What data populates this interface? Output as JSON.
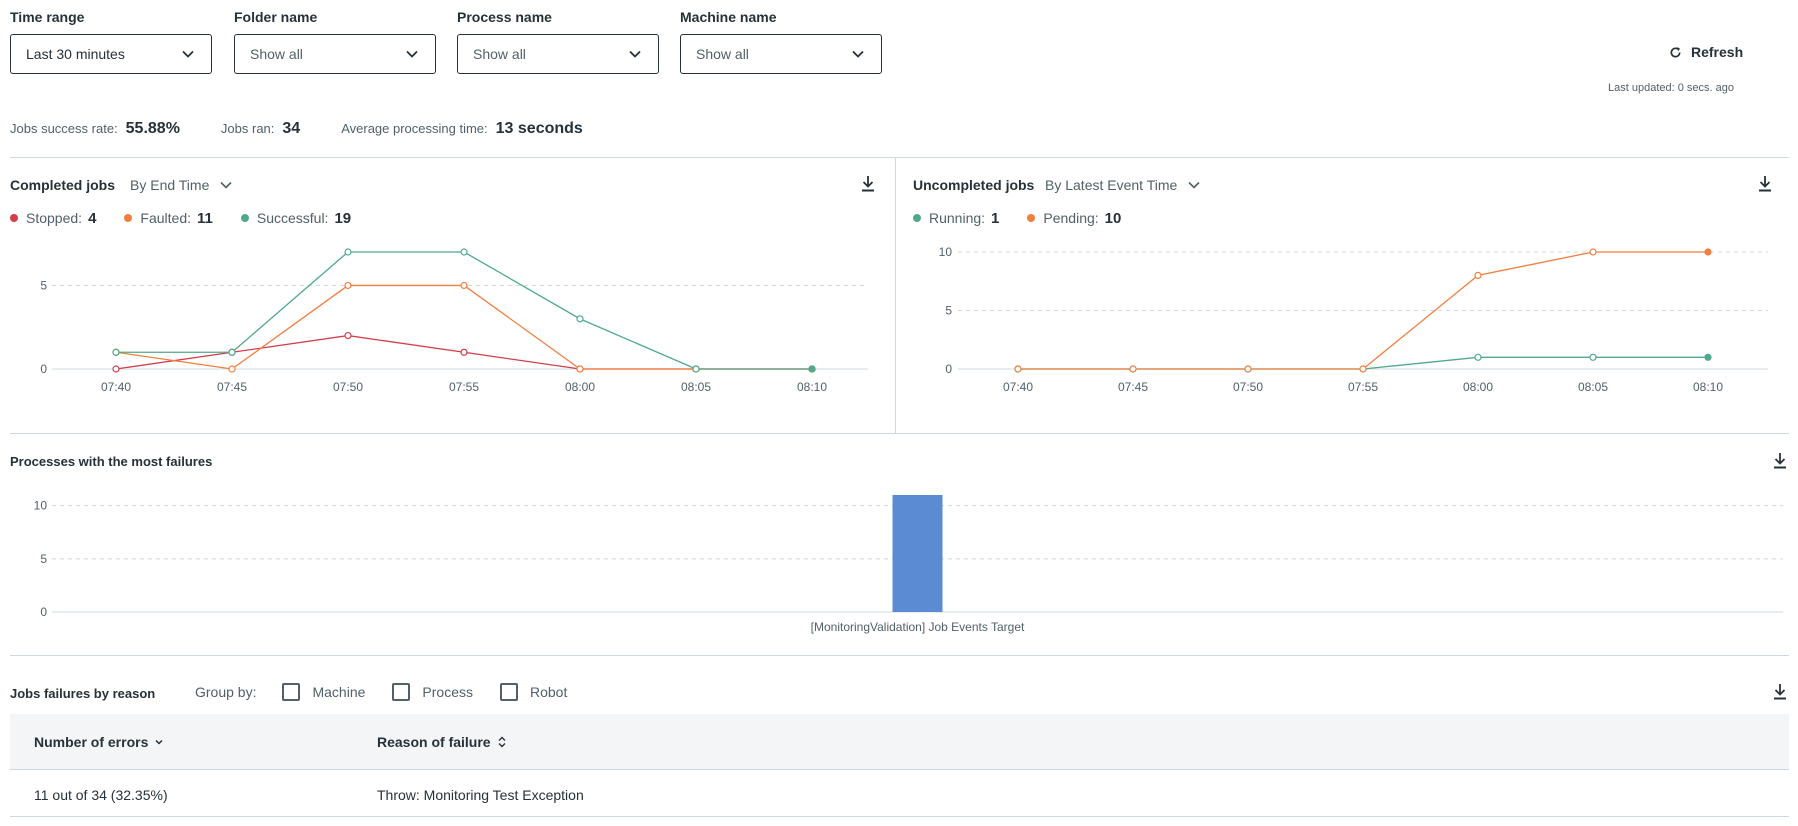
{
  "filters": {
    "time_range": {
      "label": "Time range",
      "value": "Last 30 minutes"
    },
    "folder": {
      "label": "Folder name",
      "value": "Show all"
    },
    "process": {
      "label": "Process name",
      "value": "Show all"
    },
    "machine": {
      "label": "Machine name",
      "value": "Show all"
    }
  },
  "refresh": {
    "label": "Refresh",
    "last_updated": "Last updated: 0 secs. ago"
  },
  "stats": {
    "success_rate_label": "Jobs success rate:",
    "success_rate_value": "55.88%",
    "jobs_ran_label": "Jobs ran:",
    "jobs_ran_value": "34",
    "avg_time_label": "Average processing time:",
    "avg_time_value": "13 seconds"
  },
  "completed": {
    "title": "Completed jobs",
    "sort_label": "By End Time",
    "legend": [
      {
        "label": "Stopped:",
        "value": "4",
        "color": "#d13d4b"
      },
      {
        "label": "Faulted:",
        "value": "11",
        "color": "#f27e3f"
      },
      {
        "label": "Successful:",
        "value": "19",
        "color": "#50aa89"
      }
    ]
  },
  "uncompleted": {
    "title": "Uncompleted jobs",
    "sort_label": "By Latest Event Time",
    "legend": [
      {
        "label": "Running:",
        "value": "1",
        "color": "#50aa89"
      },
      {
        "label": "Pending:",
        "value": "10",
        "color": "#f27e3f"
      }
    ]
  },
  "failures": {
    "title": "Processes with the most failures"
  },
  "reasons": {
    "title": "Jobs failures by reason",
    "group_by_label": "Group by:",
    "options": [
      {
        "label": "Machine",
        "checked": false
      },
      {
        "label": "Process",
        "checked": false
      },
      {
        "label": "Robot",
        "checked": false
      }
    ],
    "columns": [
      "Number of errors",
      "Reason of failure"
    ],
    "rows": [
      {
        "errors": "11 out of 34 (32.35%)",
        "reason": "Throw: Monitoring Test Exception"
      }
    ]
  },
  "chart_data": [
    {
      "type": "line",
      "title": "Completed jobs",
      "x": [
        "07:40",
        "07:45",
        "07:50",
        "07:55",
        "08:00",
        "08:05",
        "08:10"
      ],
      "yticks": [
        0,
        5
      ],
      "ylim": [
        0,
        7
      ],
      "grid": true,
      "series": [
        {
          "name": "Stopped",
          "color": "#d13d4b",
          "values": [
            0,
            1,
            2,
            1,
            0,
            0,
            0
          ]
        },
        {
          "name": "Faulted",
          "color": "#f27e3f",
          "values": [
            1,
            0,
            5,
            5,
            0,
            0,
            0
          ]
        },
        {
          "name": "Successful",
          "color": "#50aa89",
          "values": [
            1,
            1,
            7,
            7,
            3,
            0,
            0
          ]
        }
      ]
    },
    {
      "type": "line",
      "title": "Uncompleted jobs",
      "x": [
        "07:40",
        "07:45",
        "07:50",
        "07:55",
        "08:00",
        "08:05",
        "08:10"
      ],
      "yticks": [
        0,
        5,
        10
      ],
      "ylim": [
        0,
        10
      ],
      "grid": true,
      "series": [
        {
          "name": "Running",
          "color": "#50aa89",
          "values": [
            0,
            0,
            0,
            0,
            1,
            1,
            1
          ]
        },
        {
          "name": "Pending",
          "color": "#f27e3f",
          "values": [
            0,
            0,
            0,
            0,
            8,
            10,
            10
          ]
        }
      ]
    },
    {
      "type": "bar",
      "title": "Processes with the most failures",
      "categories": [
        "[MonitoringValidation] Job Events Target"
      ],
      "values": [
        11
      ],
      "yticks": [
        0,
        5,
        10
      ],
      "ylim": [
        0,
        11
      ],
      "grid": true,
      "color": "#5b8bd2"
    }
  ]
}
